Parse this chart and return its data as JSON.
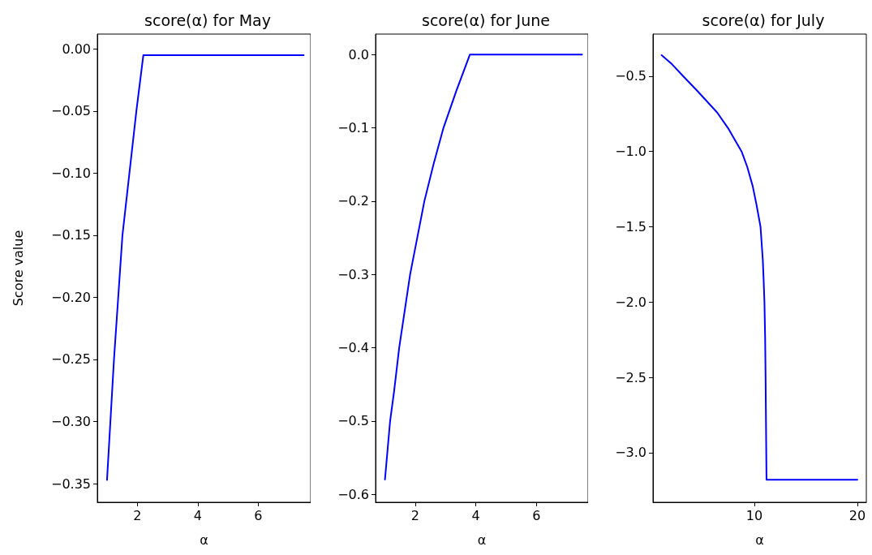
{
  "chart_data": [
    {
      "type": "line",
      "title": "score(α) for May",
      "xlabel": "α",
      "ylabel": "Score value",
      "series": [
        {
          "color": "#0000ff",
          "x": [
            1.0,
            1.23,
            1.51,
            1.97,
            2.2,
            7.5
          ],
          "values": [
            -0.347,
            -0.25,
            -0.15,
            -0.05,
            -0.005,
            -0.005
          ]
        }
      ],
      "xlim": [
        0.68,
        7.73
      ],
      "xticks": [
        2,
        4,
        6
      ],
      "ylim": [
        -0.365,
        0.012
      ],
      "yticks": [
        {
          "value": -0.35,
          "label": "−0.35"
        },
        {
          "value": -0.3,
          "label": "−0.30"
        },
        {
          "value": -0.25,
          "label": "−0.25"
        },
        {
          "value": -0.2,
          "label": "−0.20"
        },
        {
          "value": -0.15,
          "label": "−0.15"
        },
        {
          "value": -0.1,
          "label": "−0.10"
        },
        {
          "value": -0.05,
          "label": "−0.05"
        },
        {
          "value": 0,
          "label": "0.00"
        }
      ],
      "grid": false,
      "marker": "none",
      "line_style": "solid"
    },
    {
      "type": "line",
      "title": "score(α) for June",
      "xlabel": "α",
      "series": [
        {
          "color": "#0000ff",
          "x": [
            1.0,
            1.17,
            1.3,
            1.47,
            1.83,
            2.3,
            2.6,
            2.93,
            3.35,
            3.8,
            7.5
          ],
          "values": [
            -0.58,
            -0.5,
            -0.46,
            -0.4,
            -0.3,
            -0.2,
            -0.15,
            -0.1,
            -0.05,
            0,
            0
          ]
        }
      ],
      "xlim": [
        0.69,
        7.7
      ],
      "xticks": [
        2,
        4,
        6
      ],
      "ylim": [
        -0.611,
        0.028
      ],
      "yticks": [
        {
          "value": -0.6,
          "label": "−0.6"
        },
        {
          "value": -0.5,
          "label": "−0.5"
        },
        {
          "value": -0.4,
          "label": "−0.4"
        },
        {
          "value": -0.3,
          "label": "−0.3"
        },
        {
          "value": -0.2,
          "label": "−0.2"
        },
        {
          "value": -0.1,
          "label": "−0.1"
        },
        {
          "value": 0,
          "label": "0.0"
        }
      ],
      "grid": false,
      "marker": "none",
      "line_style": "solid"
    },
    {
      "type": "line",
      "title": "score(α) for July",
      "xlabel": "α",
      "series": [
        {
          "color": "#0000ff",
          "x": [
            1.0,
            2.0,
            3.1,
            4.5,
            6.38,
            7.5,
            8.76,
            9.3,
            9.84,
            10.2,
            10.6,
            10.82,
            10.9,
            10.98,
            11.05,
            11.09,
            11.18,
            20
          ],
          "values": [
            -0.36,
            -0.42,
            -0.5,
            -0.6,
            -0.74,
            -0.85,
            -1.0,
            -1.1,
            -1.23,
            -1.35,
            -1.5,
            -1.72,
            -1.85,
            -2.0,
            -2.25,
            -2.5,
            -3.18,
            -3.18
          ]
        }
      ],
      "xlim": [
        0.16,
        20.87
      ],
      "xticks": [
        10,
        20
      ],
      "ylim": [
        -3.33,
        -0.22
      ],
      "yticks": [
        {
          "value": -3.0,
          "label": "−3.0"
        },
        {
          "value": -2.5,
          "label": "−2.5"
        },
        {
          "value": -2.0,
          "label": "−2.0"
        },
        {
          "value": -1.5,
          "label": "−1.5"
        },
        {
          "value": -1.0,
          "label": "−1.0"
        },
        {
          "value": -0.5,
          "label": "−0.5"
        }
      ],
      "grid": false,
      "marker": "none",
      "line_style": "solid"
    }
  ]
}
